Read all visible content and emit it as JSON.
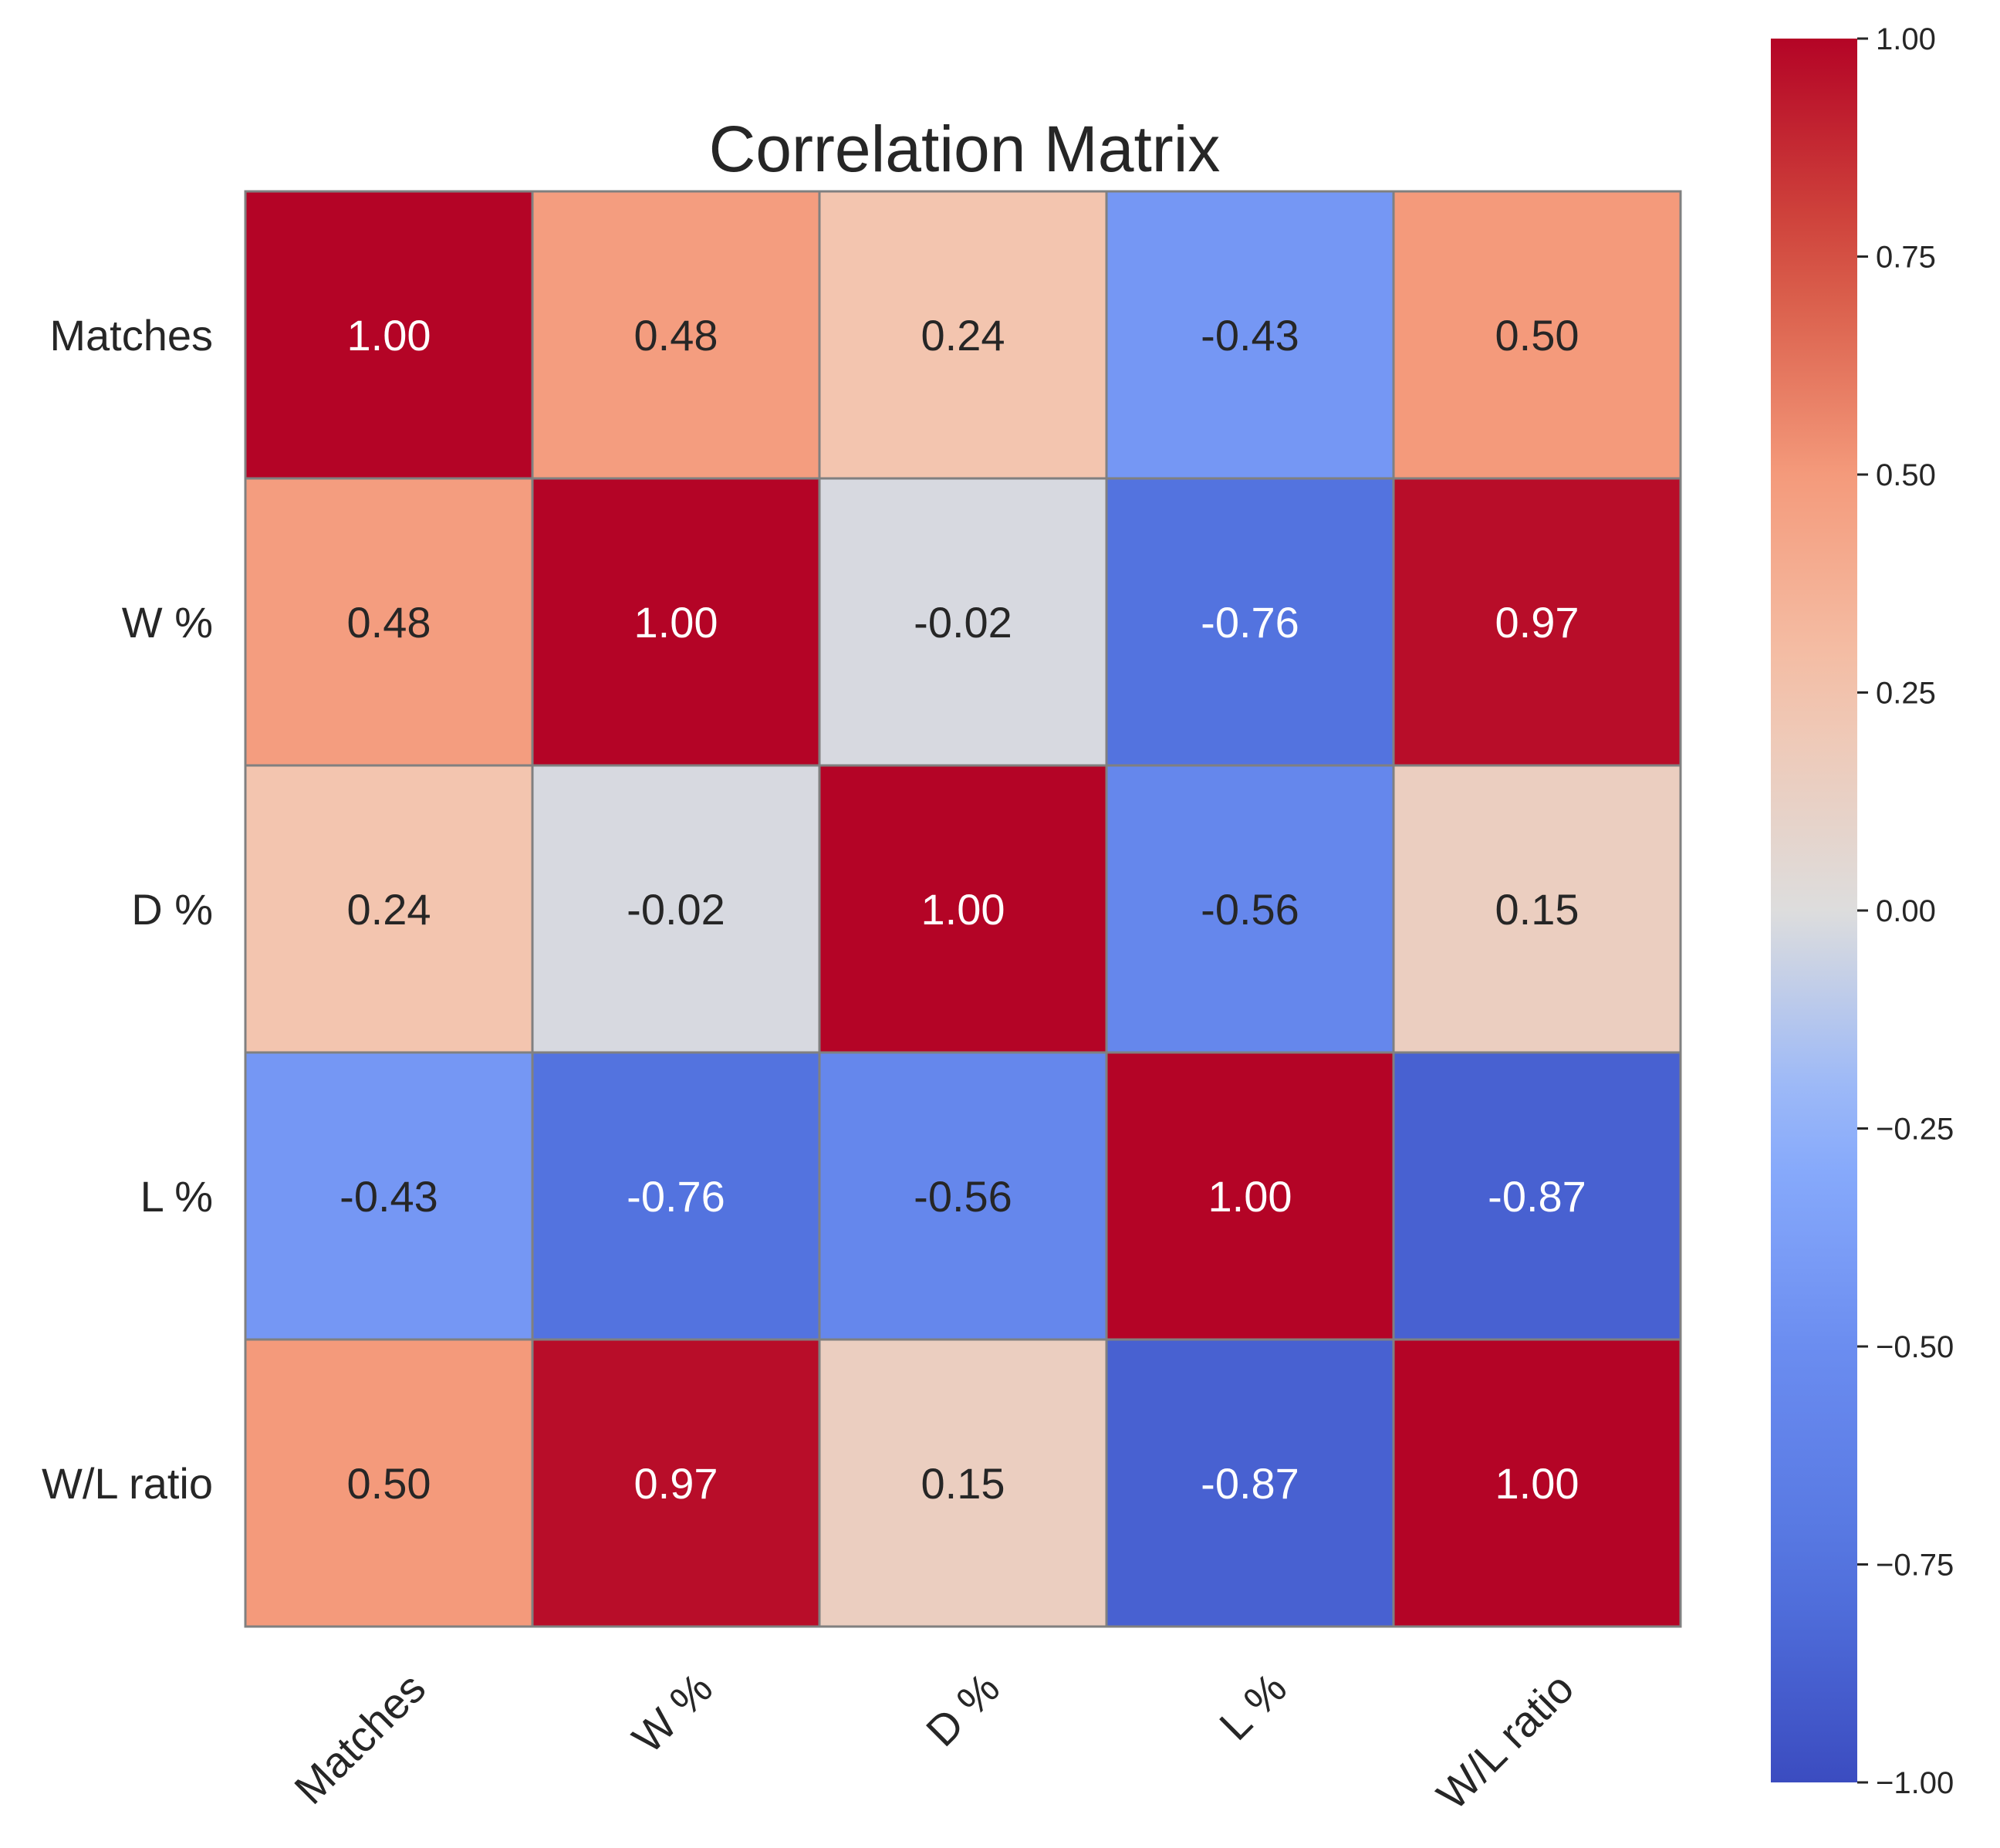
{
  "chart_data": {
    "type": "heatmap",
    "title": "Correlation Matrix",
    "xlabel": "",
    "ylabel": "",
    "row_labels": [
      "Matches",
      "W %",
      "D %",
      "L %",
      "W/L ratio"
    ],
    "col_labels": [
      "Matches",
      "W %",
      "D %",
      "L %",
      "W/L ratio"
    ],
    "values": [
      [
        1.0,
        0.48,
        0.24,
        -0.43,
        0.5
      ],
      [
        0.48,
        1.0,
        -0.02,
        -0.76,
        0.97
      ],
      [
        0.24,
        -0.02,
        1.0,
        -0.56,
        0.15
      ],
      [
        -0.43,
        -0.76,
        -0.56,
        1.0,
        -0.87
      ],
      [
        0.5,
        0.97,
        0.15,
        -0.87,
        1.0
      ]
    ],
    "value_labels": [
      [
        "1.00",
        "0.48",
        "0.24",
        "-0.43",
        "0.50"
      ],
      [
        "0.48",
        "1.00",
        "-0.02",
        "-0.76",
        "0.97"
      ],
      [
        "0.24",
        "-0.02",
        "1.00",
        "-0.56",
        "0.15"
      ],
      [
        "-0.43",
        "-0.76",
        "-0.56",
        "1.00",
        "-0.87"
      ],
      [
        "0.50",
        "0.97",
        "0.15",
        "-0.87",
        "1.00"
      ]
    ],
    "colormap": "coolwarm",
    "vmin": -1.0,
    "vmax": 1.0,
    "colorbar": {
      "placement": "right",
      "ticks": [
        1.0,
        0.75,
        0.5,
        0.25,
        0.0,
        -0.25,
        -0.5,
        -0.75,
        -1.0
      ],
      "tick_labels": [
        "1.00",
        "0.75",
        "0.50",
        "0.25",
        "0.00",
        "−0.25",
        "−0.50",
        "−0.75",
        "−1.00"
      ]
    },
    "grid": true
  }
}
